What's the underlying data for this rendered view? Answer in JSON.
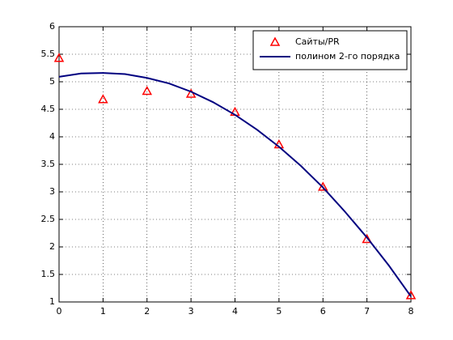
{
  "chart_data": {
    "type": "line",
    "xlim": [
      0,
      8
    ],
    "xticks": [
      0,
      1,
      2,
      3,
      4,
      5,
      6,
      7,
      8
    ],
    "ylim": [
      1,
      6
    ],
    "yticks": [
      1,
      1.5,
      2,
      2.5,
      3,
      3.5,
      4,
      4.5,
      5,
      5.5,
      6
    ],
    "grid": true,
    "legend": "upper right",
    "series": [
      {
        "name": "Сайты/PR",
        "color": "#ff0000",
        "marker": "triangle",
        "x": [
          0,
          1,
          2,
          3,
          4,
          5,
          6,
          7,
          8
        ],
        "values": [
          5.43,
          4.68,
          4.83,
          4.78,
          4.45,
          3.86,
          3.09,
          2.14,
          1.12
        ]
      },
      {
        "name": "полином 2-го порядка",
        "color": "#000080",
        "marker": "none",
        "x": [
          0,
          0.5,
          1,
          1.5,
          2,
          2.5,
          3,
          3.5,
          4,
          4.5,
          5,
          5.5,
          6,
          6.5,
          7,
          7.5,
          8
        ],
        "values": [
          5.09,
          5.15,
          5.16,
          5.14,
          5.07,
          4.97,
          4.82,
          4.63,
          4.4,
          4.13,
          3.82,
          3.47,
          3.08,
          2.64,
          2.17,
          1.66,
          1.1
        ]
      }
    ]
  }
}
